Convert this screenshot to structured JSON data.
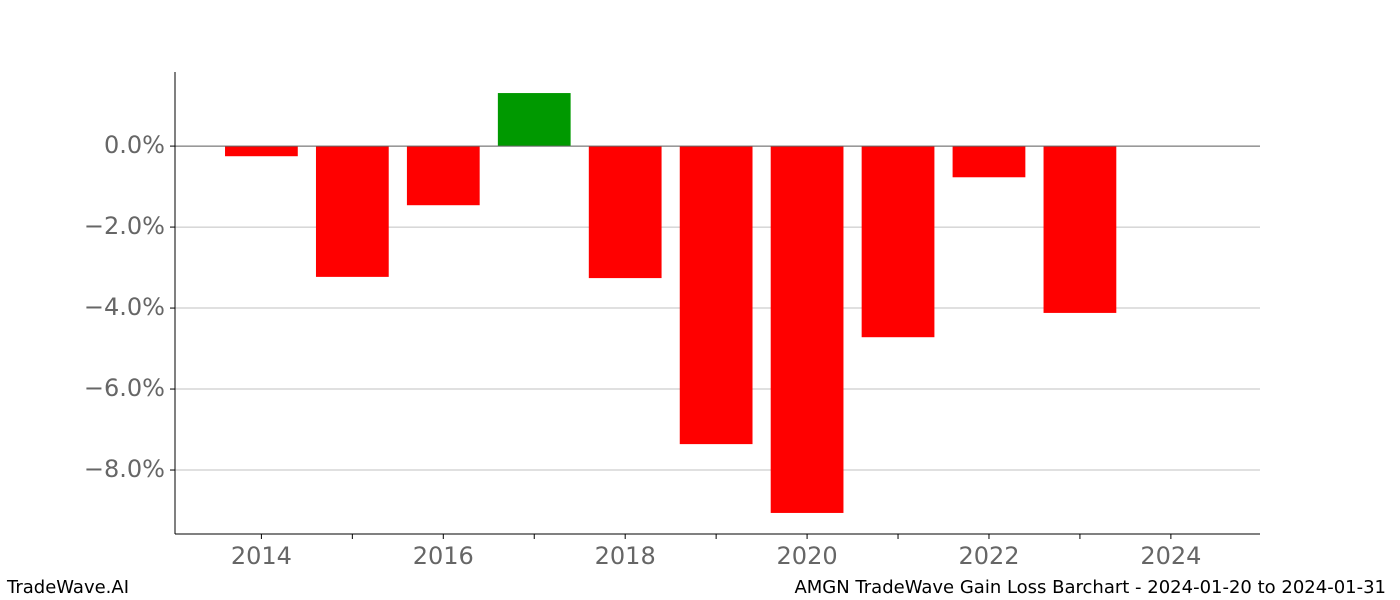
{
  "chart_data": {
    "type": "bar",
    "title": "AMGN TradeWave Gain Loss Barchart - 2024-01-20 to 2024-01-31",
    "brand": "TradeWave.AI",
    "x": [
      2014,
      2015,
      2016,
      2017,
      2018,
      2019,
      2020,
      2021,
      2022,
      2023
    ],
    "values": [
      -0.25,
      -3.23,
      -1.46,
      1.31,
      -3.26,
      -7.36,
      -9.06,
      -4.72,
      -0.77,
      -4.12
    ],
    "positive_color": "#009900",
    "negative_color": "#ff0000",
    "bar_width": 0.8,
    "xlim": [
      2013.05,
      2024.98
    ],
    "xticks": [
      2014,
      2016,
      2018,
      2020,
      2022,
      2024
    ],
    "xticks_minor": [
      2015,
      2017,
      2019,
      2021,
      2023
    ],
    "ylim": [
      -9.58,
      1.83
    ],
    "yticks": [
      {
        "value": 0,
        "label": "0.0%"
      },
      {
        "value": -2,
        "label": "−2.0%"
      },
      {
        "value": -4,
        "label": "−4.0%"
      },
      {
        "value": -6,
        "label": "−6.0%"
      },
      {
        "value": -8,
        "label": "−8.0%"
      }
    ],
    "grid": true
  }
}
